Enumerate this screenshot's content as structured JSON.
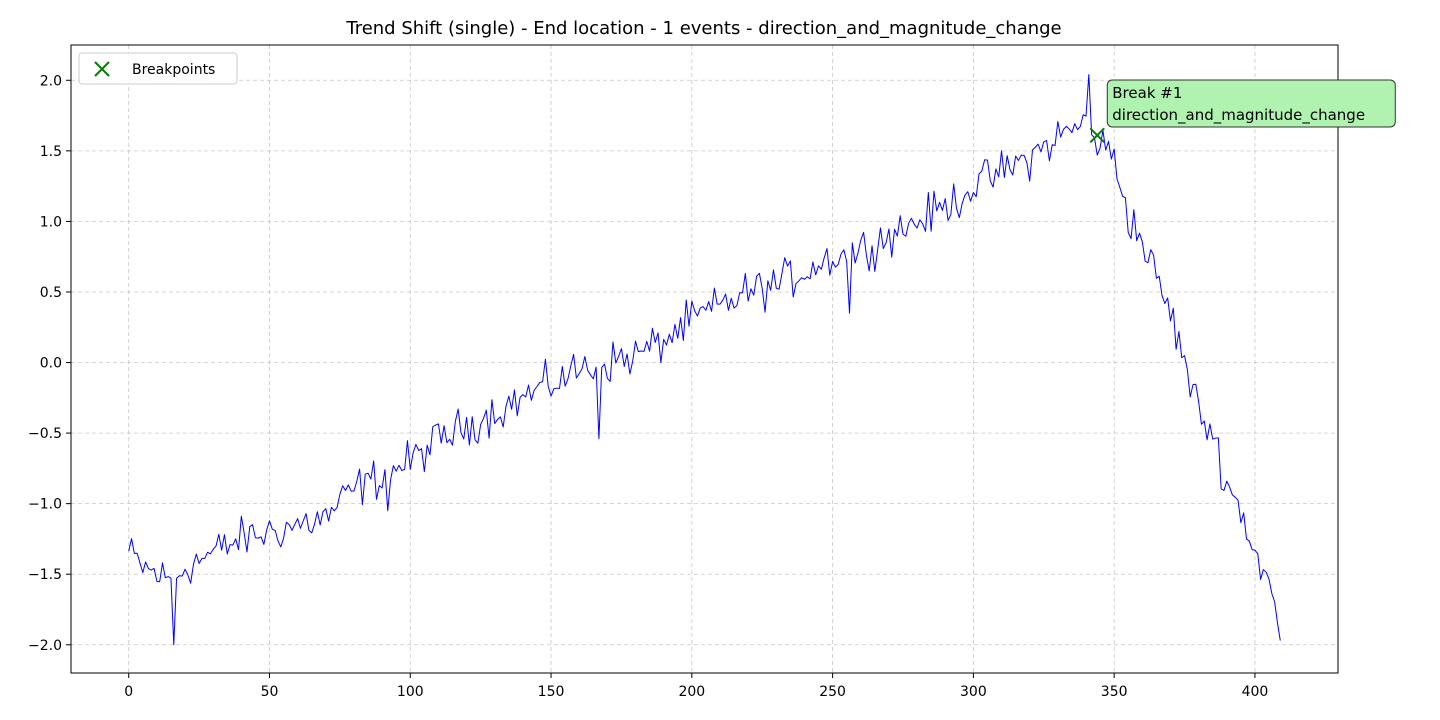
{
  "chart_data": {
    "type": "line",
    "title": "Trend Shift (single) - End location - 1 events - direction_and_magnitude_change",
    "xlabel": "",
    "ylabel": "",
    "xlim": [
      -20.5,
      429.5
    ],
    "ylim": [
      -2.2,
      2.25
    ],
    "x_ticks": [
      0,
      50,
      100,
      150,
      200,
      250,
      300,
      350,
      400
    ],
    "y_ticks": [
      -2.0,
      -1.5,
      -1.0,
      -0.5,
      0.0,
      0.5,
      1.0,
      1.5,
      2.0
    ],
    "x_tick_labels": [
      "0",
      "50",
      "100",
      "150",
      "200",
      "250",
      "300",
      "350",
      "400"
    ],
    "y_tick_labels": [
      "−2.0",
      "−1.5",
      "−1.0",
      "−0.5",
      "0.0",
      "0.5",
      "1.0",
      "1.5",
      "2.0"
    ],
    "grid": true,
    "legend": {
      "position": "upper-left",
      "entries": [
        {
          "label": "Breakpoints",
          "marker": "x",
          "color": "#008000"
        }
      ]
    },
    "series": [
      {
        "color": "#0000ff",
        "x_start": 0,
        "x_step": 1,
        "anchors": [
          [
            0,
            -1.35
          ],
          [
            5,
            -1.45
          ],
          [
            10,
            -1.5
          ],
          [
            15,
            -1.55
          ],
          [
            20,
            -1.45
          ],
          [
            25,
            -1.4
          ],
          [
            30,
            -1.35
          ],
          [
            40,
            -1.25
          ],
          [
            50,
            -1.2
          ],
          [
            60,
            -1.15
          ],
          [
            70,
            -1.1
          ],
          [
            80,
            -0.9
          ],
          [
            90,
            -0.8
          ],
          [
            100,
            -0.7
          ],
          [
            110,
            -0.55
          ],
          [
            120,
            -0.45
          ],
          [
            130,
            -0.35
          ],
          [
            140,
            -0.25
          ],
          [
            150,
            -0.15
          ],
          [
            160,
            -0.05
          ],
          [
            170,
            0.0
          ],
          [
            180,
            0.05
          ],
          [
            190,
            0.15
          ],
          [
            200,
            0.3
          ],
          [
            210,
            0.4
          ],
          [
            220,
            0.5
          ],
          [
            230,
            0.55
          ],
          [
            240,
            0.65
          ],
          [
            250,
            0.75
          ],
          [
            260,
            0.8
          ],
          [
            270,
            0.9
          ],
          [
            280,
            1.0
          ],
          [
            290,
            1.1
          ],
          [
            300,
            1.25
          ],
          [
            310,
            1.35
          ],
          [
            320,
            1.45
          ],
          [
            330,
            1.6
          ],
          [
            340,
            1.7
          ],
          [
            345,
            1.55
          ],
          [
            350,
            1.45
          ],
          [
            355,
            1.05
          ],
          [
            360,
            0.85
          ],
          [
            365,
            0.6
          ],
          [
            370,
            0.35
          ],
          [
            375,
            0.0
          ],
          [
            380,
            -0.35
          ],
          [
            385,
            -0.5
          ],
          [
            390,
            -0.85
          ],
          [
            395,
            -1.05
          ],
          [
            400,
            -1.35
          ],
          [
            405,
            -1.55
          ],
          [
            409,
            -1.97
          ]
        ],
        "noise_amplitude": 0.12,
        "notable_points": [
          [
            16,
            -2.0
          ],
          [
            92,
            -1.05
          ],
          [
            167,
            -0.54
          ],
          [
            256,
            0.35
          ],
          [
            341,
            2.04
          ],
          [
            409,
            -1.97
          ]
        ]
      }
    ],
    "breakpoints": [
      {
        "x": 344,
        "y": 1.61,
        "marker": "x",
        "color": "#008000"
      }
    ],
    "annotations": [
      {
        "x": 344,
        "y": 1.61,
        "lines": [
          "Break #1",
          "direction_and_magnitude_change"
        ],
        "background": "#b0f2b0"
      }
    ]
  }
}
